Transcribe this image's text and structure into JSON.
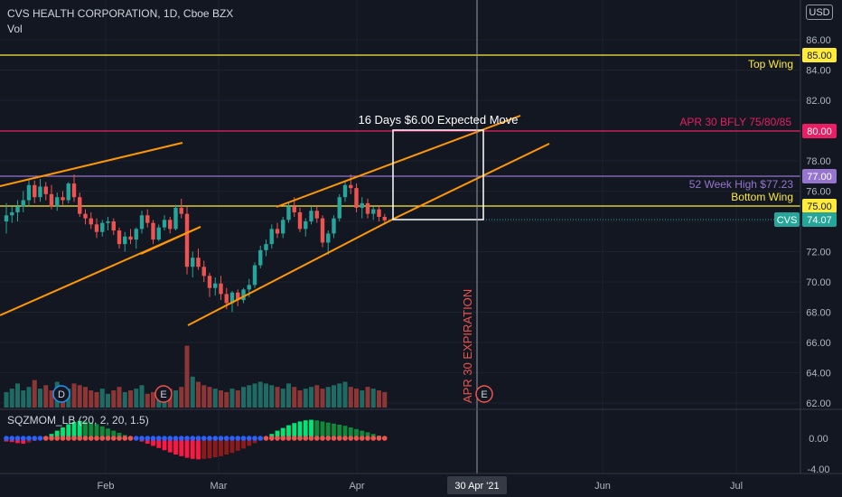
{
  "header": {
    "symbol_line": "CVS HEALTH CORPORATION, 1D, Cboe BZX",
    "volume_label": "Vol",
    "currency_button": "USD"
  },
  "oscillator": {
    "label": "SQZMOM_LB (20, 2, 20, 1.5)"
  },
  "annotations": {
    "expected_move": "16 Days  $6.00  Expected Move",
    "top_wing": "Top Wing",
    "bfly": "APR 30 BFLY 75/80/85",
    "week_high": "52 Week High $77.23",
    "bottom_wing": "Bottom Wing",
    "expiration": "APR 30 EXPIRATION",
    "event_d": "D",
    "event_e": "E"
  },
  "price_badges": {
    "p85": "85.00",
    "p80": "80.00",
    "p77": "77.00",
    "p75": "75.00",
    "cvs_symbol": "CVS",
    "cvs_price": "74.07"
  },
  "colors": {
    "background": "#131722",
    "up": "#26a69a",
    "down": "#ef5350",
    "trendline": "#ff9800",
    "yellow_level": "#ffeb3b",
    "bfly_level": "#e91e63",
    "high_level": "#9575cd",
    "expected_box": "#ffffff"
  },
  "chart_data": {
    "type": "candlestick",
    "title": "CVS HEALTH CORPORATION, 1D, Cboe BZX",
    "price_axis": {
      "ticks": [
        "86.00",
        "84.00",
        "82.00",
        "80.00",
        "78.00",
        "76.00",
        "74.00",
        "72.00",
        "70.00",
        "68.00",
        "66.00",
        "64.00",
        "62.00"
      ]
    },
    "osc_axis": {
      "ticks": [
        "0.00",
        "-4.00"
      ]
    },
    "time_axis": {
      "labels": [
        "Feb",
        "Mar",
        "Apr",
        "30 Apr '21",
        "Jun",
        "Jul"
      ]
    },
    "levels": [
      {
        "price": 85.0,
        "label": "Top Wing"
      },
      {
        "price": 80.0,
        "label": "APR 30 BFLY 75/80/85"
      },
      {
        "price": 77.0,
        "label": "52 Week High $77.23"
      },
      {
        "price": 75.0,
        "label": "Bottom Wing"
      }
    ],
    "last_price": 74.07,
    "ohlc": [
      [
        74.0,
        75.2,
        73.2,
        74.4
      ],
      [
        74.4,
        75.0,
        73.9,
        74.6
      ],
      [
        74.6,
        75.4,
        74.0,
        75.0
      ],
      [
        75.0,
        76.0,
        74.6,
        75.4
      ],
      [
        75.4,
        76.8,
        75.0,
        76.4
      ],
      [
        76.4,
        76.7,
        75.2,
        75.6
      ],
      [
        75.6,
        76.8,
        75.3,
        76.3
      ],
      [
        76.3,
        76.6,
        75.4,
        75.8
      ],
      [
        75.8,
        76.4,
        74.8,
        75.0
      ],
      [
        75.0,
        75.9,
        74.7,
        75.6
      ],
      [
        75.6,
        76.0,
        75.1,
        75.4
      ],
      [
        75.4,
        76.6,
        75.2,
        76.5
      ],
      [
        76.5,
        77.1,
        75.3,
        75.6
      ],
      [
        75.6,
        75.9,
        74.3,
        74.5
      ],
      [
        74.5,
        74.8,
        73.8,
        74.2
      ],
      [
        74.2,
        74.6,
        73.5,
        73.8
      ],
      [
        73.8,
        74.2,
        72.9,
        73.3
      ],
      [
        73.3,
        74.1,
        73.0,
        73.9
      ],
      [
        73.9,
        74.3,
        73.4,
        74.0
      ],
      [
        74.0,
        74.2,
        73.1,
        73.4
      ],
      [
        73.4,
        73.6,
        72.2,
        72.5
      ],
      [
        72.5,
        73.3,
        72.0,
        73.0
      ],
      [
        73.0,
        73.5,
        72.5,
        72.8
      ],
      [
        72.8,
        73.6,
        72.2,
        73.5
      ],
      [
        73.5,
        74.7,
        73.2,
        74.4
      ],
      [
        74.4,
        74.8,
        73.6,
        73.9
      ],
      [
        73.9,
        74.1,
        72.5,
        72.8
      ],
      [
        72.8,
        73.8,
        72.7,
        73.6
      ],
      [
        73.6,
        74.4,
        73.4,
        74.1
      ],
      [
        74.1,
        74.3,
        73.2,
        73.5
      ],
      [
        73.5,
        75.1,
        73.4,
        74.9
      ],
      [
        74.9,
        75.5,
        74.2,
        74.5
      ],
      [
        74.5,
        75.0,
        70.5,
        71.0
      ],
      [
        71.0,
        72.0,
        70.3,
        71.6
      ],
      [
        71.6,
        72.2,
        70.8,
        71.0
      ],
      [
        71.0,
        71.4,
        70.0,
        70.4
      ],
      [
        70.4,
        70.6,
        69.0,
        69.6
      ],
      [
        69.6,
        70.3,
        69.1,
        69.9
      ],
      [
        69.9,
        70.4,
        68.8,
        69.2
      ],
      [
        69.2,
        69.6,
        68.2,
        68.6
      ],
      [
        68.6,
        69.4,
        68.0,
        69.3
      ],
      [
        69.3,
        69.5,
        68.4,
        68.8
      ],
      [
        68.8,
        69.6,
        68.6,
        69.5
      ],
      [
        69.5,
        70.2,
        69.0,
        69.8
      ],
      [
        69.8,
        71.3,
        69.6,
        71.1
      ],
      [
        71.1,
        72.4,
        70.9,
        72.1
      ],
      [
        72.1,
        72.8,
        71.7,
        72.5
      ],
      [
        72.5,
        73.8,
        72.2,
        73.5
      ],
      [
        73.5,
        73.9,
        72.9,
        73.2
      ],
      [
        73.2,
        74.3,
        72.9,
        74.1
      ],
      [
        74.1,
        75.3,
        73.9,
        75.0
      ],
      [
        75.0,
        75.6,
        74.3,
        74.6
      ],
      [
        74.6,
        74.9,
        73.3,
        73.5
      ],
      [
        73.5,
        74.2,
        73.0,
        74.0
      ],
      [
        74.0,
        75.0,
        73.8,
        74.7
      ],
      [
        74.7,
        75.0,
        73.9,
        74.2
      ],
      [
        74.2,
        74.4,
        72.3,
        72.6
      ],
      [
        72.6,
        73.4,
        71.8,
        73.2
      ],
      [
        73.2,
        74.4,
        72.9,
        74.2
      ],
      [
        74.2,
        75.8,
        74.0,
        75.6
      ],
      [
        75.6,
        76.7,
        75.3,
        76.4
      ],
      [
        76.4,
        77.1,
        75.8,
        76.2
      ],
      [
        76.2,
        76.5,
        74.6,
        74.9
      ],
      [
        74.9,
        75.6,
        74.2,
        75.2
      ],
      [
        75.2,
        75.5,
        74.2,
        74.5
      ],
      [
        74.5,
        75.0,
        74.1,
        74.8
      ],
      [
        74.8,
        75.0,
        74.0,
        74.3
      ],
      [
        74.3,
        74.5,
        73.8,
        74.07
      ]
    ],
    "volume_rel": [
      0.45,
      0.55,
      0.7,
      0.5,
      0.6,
      0.8,
      0.55,
      0.65,
      0.5,
      0.75,
      0.6,
      0.55,
      0.7,
      0.65,
      0.6,
      0.5,
      0.45,
      0.55,
      0.4,
      0.5,
      0.6,
      0.45,
      0.5,
      0.55,
      0.65,
      0.4,
      0.45,
      0.5,
      0.6,
      0.55,
      0.5,
      0.6,
      1.8,
      0.9,
      0.75,
      0.65,
      0.6,
      0.55,
      0.5,
      0.45,
      0.55,
      0.5,
      0.6,
      0.65,
      0.7,
      0.75,
      0.7,
      0.65,
      0.6,
      0.55,
      0.7,
      0.6,
      0.5,
      0.55,
      0.6,
      0.65,
      0.55,
      0.6,
      0.65,
      0.7,
      0.75,
      0.6,
      0.55,
      0.5,
      0.6,
      0.55,
      0.5,
      0.45
    ],
    "momentum": [
      -0.6,
      -0.7,
      -0.9,
      -1.0,
      -0.8,
      -0.5,
      -0.2,
      0.3,
      0.8,
      1.4,
      2.0,
      2.6,
      3.0,
      3.2,
      3.1,
      2.9,
      2.6,
      2.2,
      1.8,
      1.4,
      1.0,
      0.6,
      0.3,
      -0.2,
      -0.6,
      -1.0,
      -1.4,
      -1.8,
      -2.2,
      -2.6,
      -3.0,
      -3.3,
      -3.6,
      -3.8,
      -3.9,
      -3.8,
      -3.7,
      -3.5,
      -3.3,
      -3.0,
      -2.7,
      -2.3,
      -1.9,
      -1.4,
      -0.9,
      -0.4,
      0.2,
      0.8,
      1.4,
      1.9,
      2.4,
      2.8,
      3.1,
      3.3,
      3.4,
      3.3,
      3.1,
      2.9,
      2.7,
      2.5,
      2.3,
      2.0,
      1.7,
      1.4,
      1.1,
      0.8,
      0.5,
      0.3
    ]
  }
}
